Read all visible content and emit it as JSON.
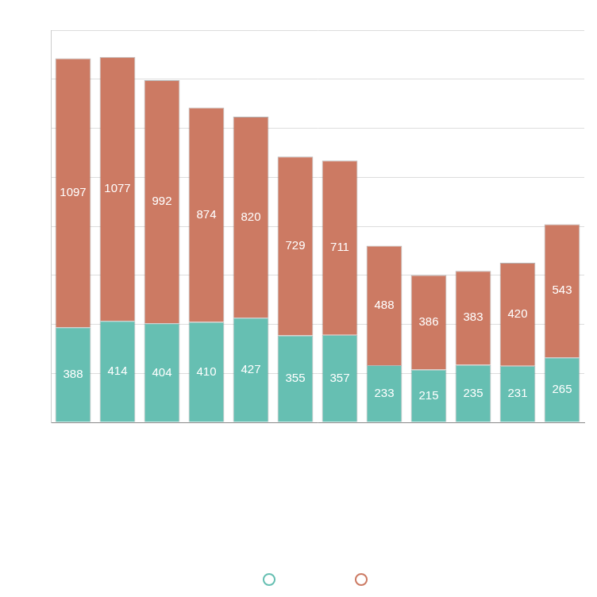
{
  "chart_data": {
    "type": "bar",
    "stacked": true,
    "data_labels": true,
    "grid": true,
    "tick_labels": false,
    "legend": "bottom",
    "categories": [
      null,
      null,
      null,
      null,
      null,
      null,
      null,
      null,
      null,
      null,
      null,
      null
    ],
    "series": [
      {
        "color": "#66bfb2",
        "values": [
          388,
          414,
          404,
          410,
          427,
          355,
          357,
          233,
          215,
          235,
          231,
          265
        ]
      },
      {
        "color": "#cc7a63",
        "values": [
          1097,
          1077,
          992,
          874,
          820,
          729,
          711,
          488,
          386,
          383,
          420,
          543
        ]
      }
    ],
    "ylim": [
      0,
      1600
    ],
    "yticks": [
      0,
      200,
      400,
      600,
      800,
      1000,
      1200,
      1400,
      1600
    ]
  }
}
